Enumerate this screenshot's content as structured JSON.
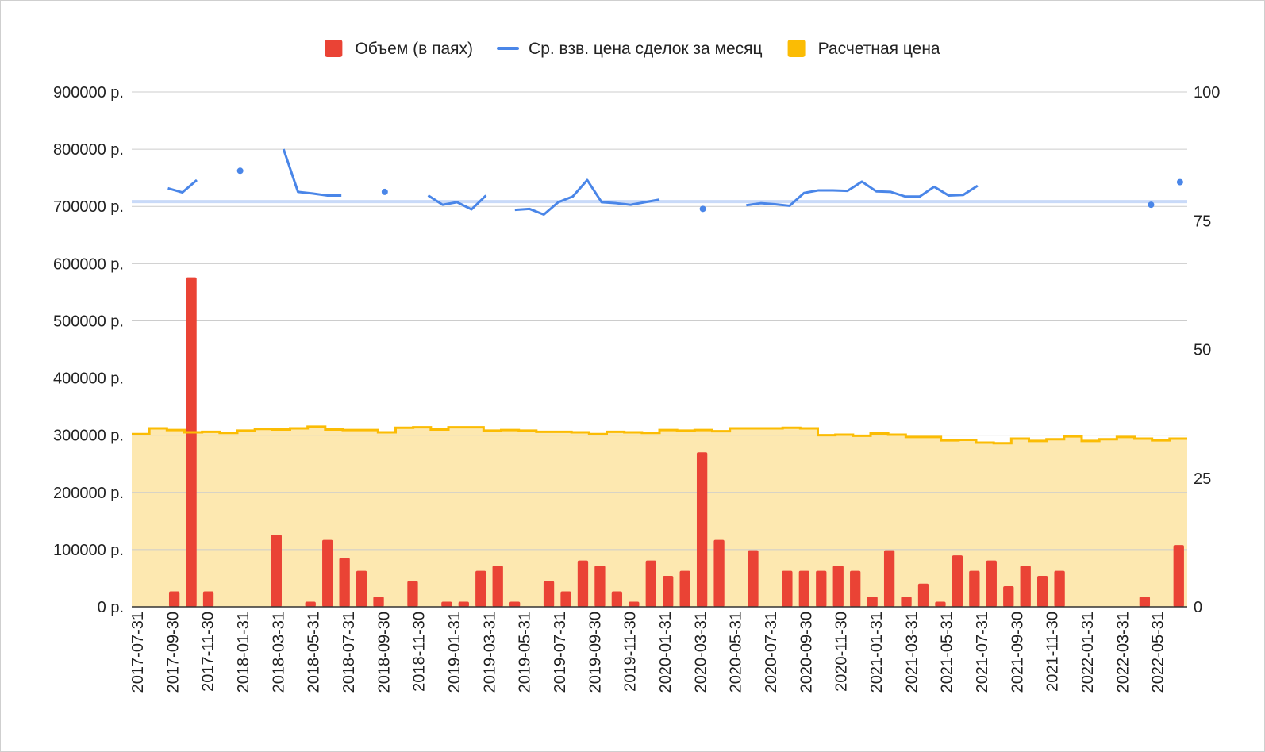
{
  "chart_data": {
    "type": "bar",
    "legend_position": "top",
    "grid": true,
    "colors": {
      "volume": "#ea4335",
      "avg_price": "#4a86e8",
      "calc_price_line": "#fbbc04",
      "calc_price_area": "#fde8b0",
      "avg_reference": "#c9daf8",
      "grid": "#cccccc",
      "axis": "#333333"
    },
    "legend": [
      {
        "key": "volume",
        "label": "Объем (в паях)",
        "color": "#ea4335"
      },
      {
        "key": "avg_price",
        "label": "Ср. взв. цена сделок за месяц",
        "color": "#4a86e8"
      },
      {
        "key": "calc_price",
        "label": "Расчетная цена",
        "color": "#fbbc04"
      }
    ],
    "left_axis": {
      "ylim": [
        0,
        900000
      ],
      "ticks": [
        0,
        100000,
        200000,
        300000,
        400000,
        500000,
        600000,
        700000,
        800000,
        900000
      ],
      "tick_labels": [
        "0 р.",
        "100000 р.",
        "200000 р.",
        "300000 р.",
        "400000 р.",
        "500000 р.",
        "600000 р.",
        "700000 р.",
        "800000 р.",
        "900000 р."
      ]
    },
    "right_axis": {
      "ylim": [
        0,
        100
      ],
      "ticks": [
        0,
        25,
        50,
        75,
        100
      ],
      "tick_labels": [
        "0",
        "25",
        "50",
        "75",
        "100"
      ]
    },
    "x_tick_labels": [
      "2017-07-31",
      "2017-09-30",
      "2017-11-30",
      "2018-01-31",
      "2018-03-31",
      "2018-05-31",
      "2018-07-31",
      "2018-09-30",
      "2018-11-30",
      "2019-01-31",
      "2019-03-31",
      "2019-05-31",
      "2019-07-31",
      "2019-09-30",
      "2019-11-30",
      "2020-01-31",
      "2020-03-31",
      "2020-05-31",
      "2020-07-31",
      "2020-09-30",
      "2020-11-30",
      "2021-01-31",
      "2021-03-31",
      "2021-05-31",
      "2021-07-31",
      "2021-09-30",
      "2021-11-30",
      "2022-01-31",
      "2022-03-31",
      "2022-05-31"
    ],
    "series": [
      {
        "name": "Объем (в паях)",
        "type": "bar",
        "axis": "right",
        "values": [
          0,
          0,
          3,
          64,
          3,
          0,
          0,
          0,
          14,
          0,
          1,
          13,
          9.5,
          7,
          2,
          0,
          5,
          0,
          1,
          1,
          7,
          8,
          1,
          0,
          5,
          3,
          9,
          8,
          3,
          1,
          9,
          6,
          7,
          30,
          13,
          0,
          11,
          0,
          7,
          7,
          7,
          8,
          7,
          2,
          11,
          2,
          4.5,
          1,
          10,
          7,
          9,
          4,
          8,
          6,
          7,
          0,
          0,
          0,
          0,
          2,
          0,
          12
        ]
      },
      {
        "name": "Ср. взв. цена сделок за месяц",
        "type": "line",
        "axis": "right",
        "values": [
          null,
          null,
          81.3,
          80.5,
          82.9,
          null,
          null,
          84.7,
          null,
          null,
          88.9,
          80.6,
          80.3,
          79.9,
          79.9,
          null,
          null,
          80.6,
          null,
          null,
          79.9,
          78.1,
          78.6,
          77.2,
          79.9,
          null,
          77.1,
          77.3,
          76.2,
          78.6,
          79.7,
          82.9,
          78.6,
          78.4,
          78.1,
          78.6,
          79.1,
          null,
          null,
          77.3,
          null,
          null,
          78.0,
          78.4,
          78.2,
          77.9,
          80.4,
          80.9,
          80.9,
          80.8,
          82.6,
          80.7,
          80.6,
          79.7,
          79.7,
          81.6,
          79.9,
          80.0,
          81.8,
          null,
          null,
          null,
          null,
          null,
          null,
          null,
          null,
          null,
          null,
          null,
          78.1,
          null,
          82.5
        ]
      },
      {
        "name": "Расчетная цена",
        "type": "area-step",
        "axis": "left",
        "values": [
          302000,
          312000,
          309000,
          305000,
          306000,
          304000,
          308000,
          311000,
          310000,
          312000,
          315000,
          310000,
          309000,
          309000,
          305000,
          313000,
          314000,
          310000,
          314000,
          314000,
          308000,
          309000,
          308000,
          306000,
          306000,
          305000,
          302000,
          306000,
          305000,
          304000,
          309000,
          308000,
          309000,
          307000,
          312000,
          312000,
          312000,
          313000,
          312000,
          300000,
          301000,
          299000,
          303000,
          301000,
          297000,
          297000,
          291000,
          292000,
          287000,
          286000,
          294000,
          290000,
          293000,
          298000,
          290000,
          293000,
          297000,
          294000,
          291000,
          294000
        ]
      }
    ]
  }
}
